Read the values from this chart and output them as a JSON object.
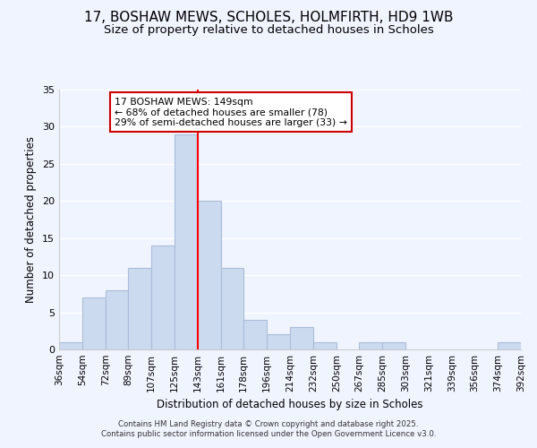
{
  "title": "17, BOSHAW MEWS, SCHOLES, HOLMFIRTH, HD9 1WB",
  "subtitle": "Size of property relative to detached houses in Scholes",
  "xlabel": "Distribution of detached houses by size in Scholes",
  "ylabel": "Number of detached properties",
  "bar_color": "#ccdaf0",
  "bar_edge_color": "#aabdd8",
  "bin_edges": [
    36,
    54,
    72,
    89,
    107,
    125,
    143,
    161,
    178,
    196,
    214,
    232,
    250,
    267,
    285,
    303,
    321,
    339,
    356,
    374,
    392
  ],
  "bin_labels": [
    "36sqm",
    "54sqm",
    "72sqm",
    "89sqm",
    "107sqm",
    "125sqm",
    "143sqm",
    "161sqm",
    "178sqm",
    "196sqm",
    "214sqm",
    "232sqm",
    "250sqm",
    "267sqm",
    "285sqm",
    "303sqm",
    "321sqm",
    "339sqm",
    "356sqm",
    "374sqm",
    "392sqm"
  ],
  "counts": [
    1,
    7,
    8,
    11,
    14,
    29,
    20,
    11,
    4,
    2,
    3,
    1,
    0,
    1,
    1,
    0,
    0,
    0,
    0,
    1
  ],
  "red_line_x": 143,
  "ylim": [
    0,
    35
  ],
  "yticks": [
    0,
    5,
    10,
    15,
    20,
    25,
    30,
    35
  ],
  "annotation_title": "17 BOSHAW MEWS: 149sqm",
  "annotation_line1": "← 68% of detached houses are smaller (78)",
  "annotation_line2": "29% of semi-detached houses are larger (33) →",
  "footnote1": "Contains HM Land Registry data © Crown copyright and database right 2025.",
  "footnote2": "Contains public sector information licensed under the Open Government Licence v3.0.",
  "background_color": "#f0f4ff",
  "grid_color": "#ffffff",
  "title_fontsize": 11,
  "subtitle_fontsize": 9.5
}
